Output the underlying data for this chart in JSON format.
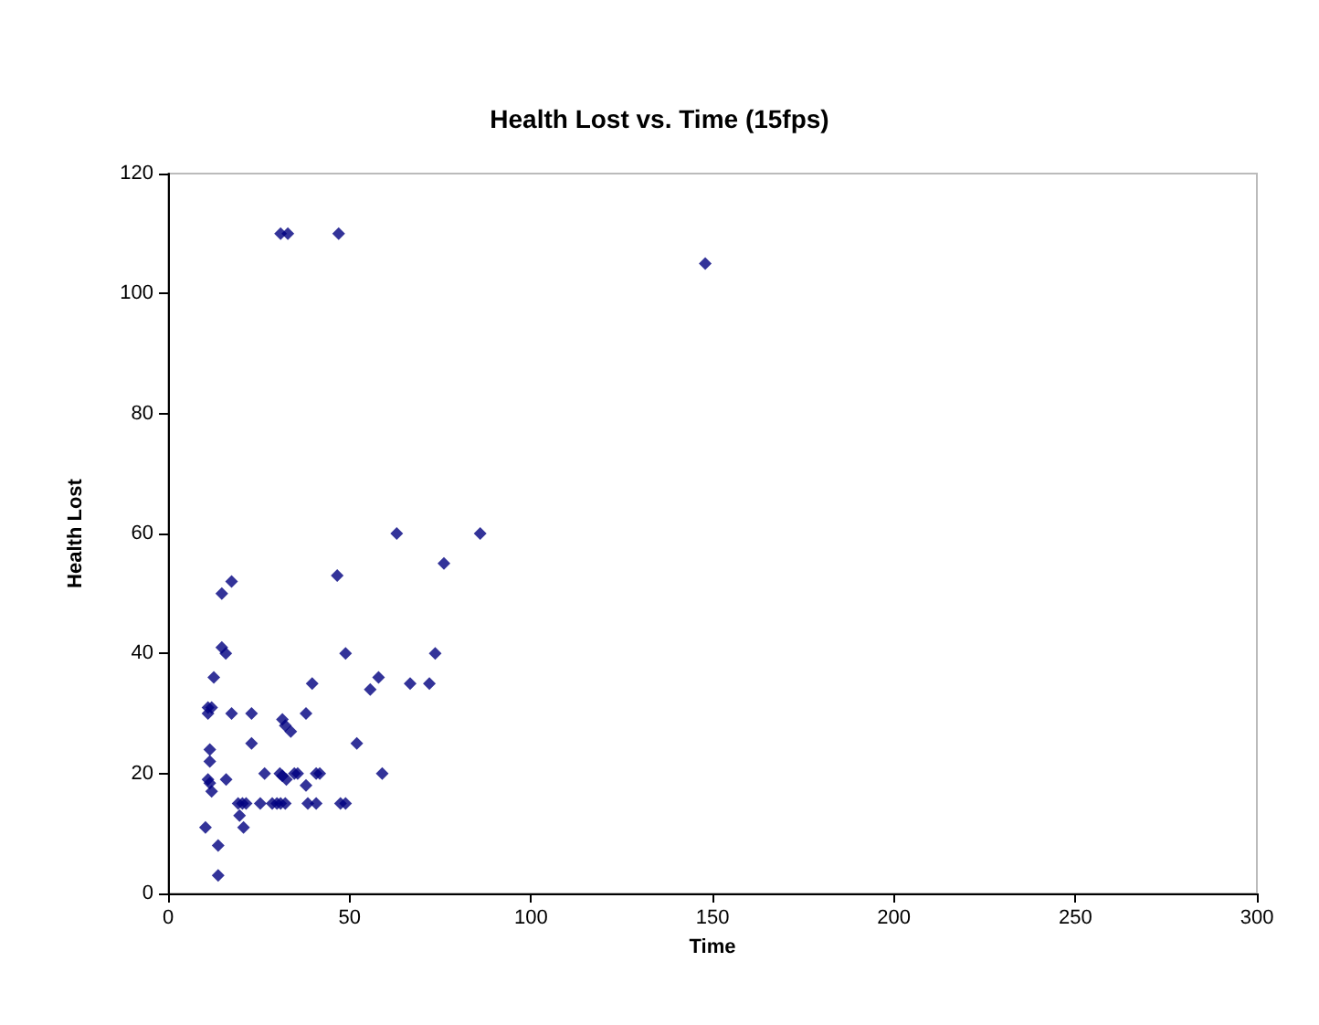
{
  "chart_data": {
    "type": "scatter",
    "title": "Health Lost vs. Time (15fps)",
    "xlabel": "Time",
    "ylabel": "Health Lost",
    "xlim": [
      0,
      300
    ],
    "xticks": [
      0,
      50,
      100,
      150,
      200,
      250,
      300
    ],
    "ylim": [
      0,
      120
    ],
    "yticks": [
      0,
      20,
      40,
      60,
      80,
      100,
      120
    ],
    "marker": "diamond",
    "series": [
      {
        "color": "#000080",
        "x": [
          31,
          33,
          47,
          148,
          63,
          86,
          76,
          46.6,
          17.5,
          14.8,
          14.8,
          15.9,
          48.9,
          73.6,
          12.6,
          39.7,
          58,
          55.7,
          66.7,
          72,
          11,
          12,
          11,
          17.5,
          23,
          38,
          31.5,
          32.3,
          33.8,
          23,
          52,
          11.5,
          11.5,
          11,
          11.5,
          12,
          16,
          26.6,
          30.8,
          31.5,
          32.6,
          34.8,
          35.7,
          38,
          40.8,
          41.8,
          59,
          19.3,
          20.5,
          21.5,
          25.4,
          28.7,
          30,
          31,
          32.3,
          38.5,
          40.8,
          47.5,
          48.9,
          19.7,
          20.8,
          10.3,
          13.8,
          13.8
        ],
        "values": [
          110,
          110,
          110,
          105,
          60,
          60,
          55,
          53,
          52,
          50,
          41,
          40,
          40,
          40,
          36,
          35,
          36,
          34,
          35,
          35,
          31,
          31,
          30,
          30,
          30,
          30,
          29,
          28,
          27,
          25,
          25,
          24,
          22,
          19,
          18.4,
          17,
          19,
          20,
          20,
          19.6,
          19,
          20,
          20,
          18,
          20,
          20,
          20,
          15,
          15,
          15,
          15,
          15,
          15,
          15,
          15,
          15,
          15,
          15,
          15,
          13,
          11,
          11,
          8,
          3
        ]
      }
    ]
  }
}
